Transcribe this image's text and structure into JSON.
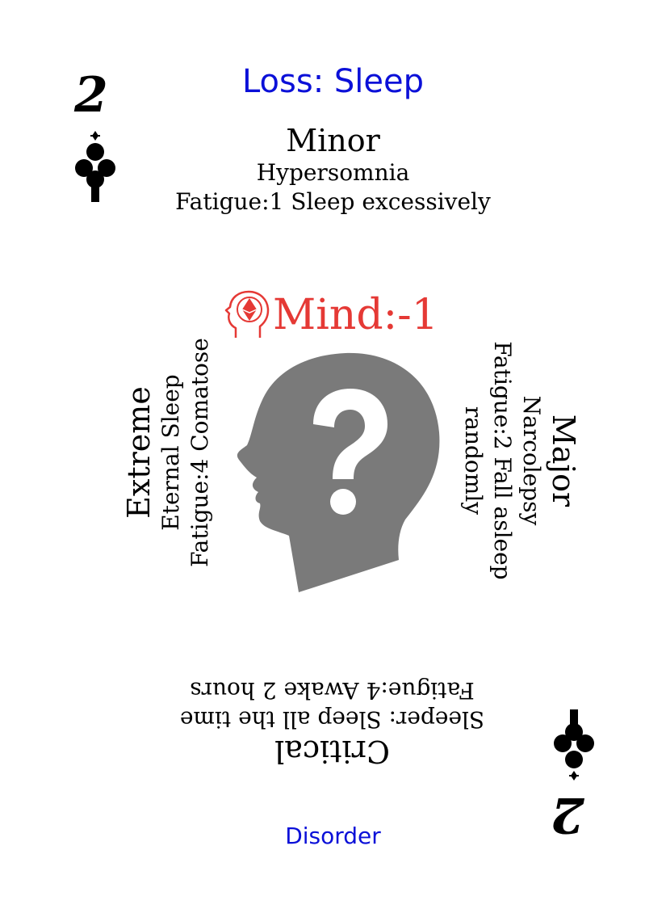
{
  "card": {
    "rank": "2",
    "suit_icon": "club-icon",
    "title": "Loss: Sleep",
    "footer": "Disorder",
    "colors": {
      "title": "#0b10d8",
      "mind": "#e53935",
      "head": "#7a7a7a",
      "text": "#000000"
    }
  },
  "mind": {
    "label": "Mind:-1",
    "icon": "mind-head-icon"
  },
  "illustration": {
    "icon": "head-question-mark-icon"
  },
  "minor": {
    "severity": "Minor",
    "name": "Hypersomnia",
    "effect": "Fatigue:1 Sleep excessively"
  },
  "major": {
    "severity": "Major",
    "name": "Narcolepsy",
    "effect": "Fatigue:2 Fall asleep randomly"
  },
  "extreme": {
    "severity": "Extreme",
    "name": "Eternal Sleep",
    "effect": "Fatigue:4 Comatose"
  },
  "critical": {
    "severity": "Critical",
    "name": "Sleeper: Sleep all the time",
    "effect": "Fatigue:4 Awake 2 hours"
  }
}
